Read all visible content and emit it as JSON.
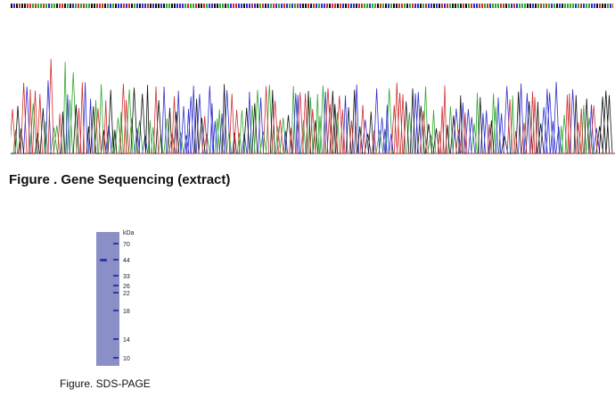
{
  "gene_figure": {
    "caption": "Figure . Gene Sequencing (extract)",
    "base_colors": {
      "A": "#2fa82f",
      "C": "#2f2fd0",
      "G": "#111111",
      "T": "#d03030"
    }
  },
  "gel_figure": {
    "caption": "Figure. SDS-PAGE",
    "unit_label": "kDa",
    "markers": [
      "70",
      "44",
      "33",
      "26",
      "22",
      "18",
      "14",
      "10"
    ],
    "lane_color": "#8a8fc8",
    "band_color": "#2a3aa8"
  }
}
